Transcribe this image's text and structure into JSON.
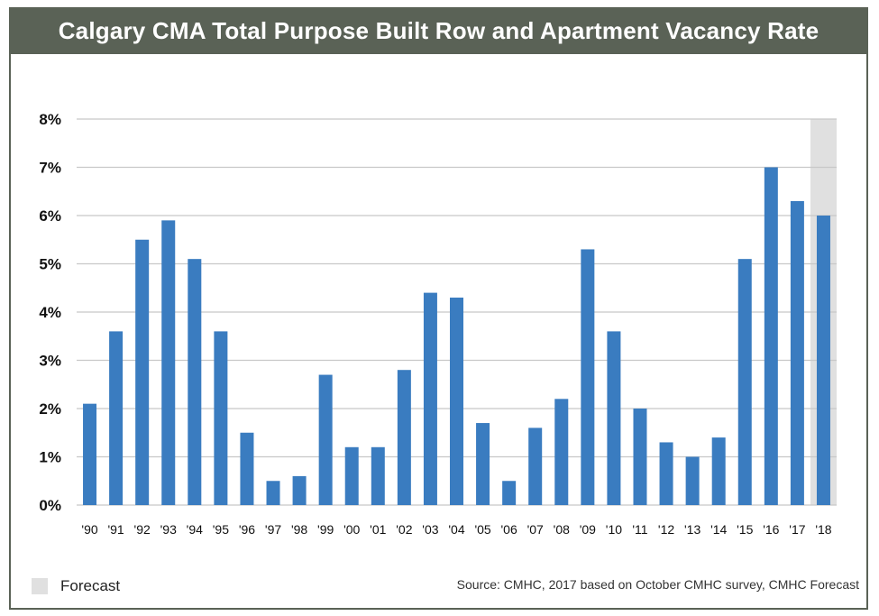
{
  "chart_data": {
    "type": "bar",
    "title": "Calgary CMA Total Purpose Built Row and Apartment Vacancy Rate",
    "categories": [
      "'90",
      "'91",
      "'92",
      "'93",
      "'94",
      "'95",
      "'96",
      "'97",
      "'98",
      "'99",
      "'00",
      "'01",
      "'02",
      "'03",
      "'04",
      "'05",
      "'06",
      "'07",
      "'08",
      "'09",
      "'10",
      "'11",
      "'12",
      "'13",
      "'14",
      "'15",
      "'16",
      "'17",
      "'18"
    ],
    "values": [
      2.1,
      3.6,
      5.5,
      5.9,
      5.1,
      3.6,
      1.5,
      0.5,
      0.6,
      2.7,
      1.2,
      1.2,
      2.8,
      4.4,
      4.3,
      1.7,
      0.5,
      1.6,
      2.2,
      5.3,
      3.6,
      2.0,
      1.3,
      1.0,
      1.4,
      5.1,
      7.0,
      6.3,
      6.0
    ],
    "ylim": [
      0,
      8
    ],
    "yticks": [
      0,
      1,
      2,
      3,
      4,
      5,
      6,
      7,
      8
    ],
    "ytick_labels": [
      "0%",
      "1%",
      "2%",
      "3%",
      "4%",
      "5%",
      "6%",
      "7%",
      "8%"
    ],
    "forecast_categories": [
      "'18"
    ],
    "legend": {
      "label": "Forecast",
      "placement": "bottom-left"
    },
    "grid": true,
    "source": "Source: CMHC, 2017 based on October CMHC survey, CMHC Forecast"
  },
  "colors": {
    "bar": "#3a7cc0",
    "forecast_shade": "#e0e0e0",
    "grid": "#c8c8c8",
    "title_bg": "#5a6256"
  }
}
